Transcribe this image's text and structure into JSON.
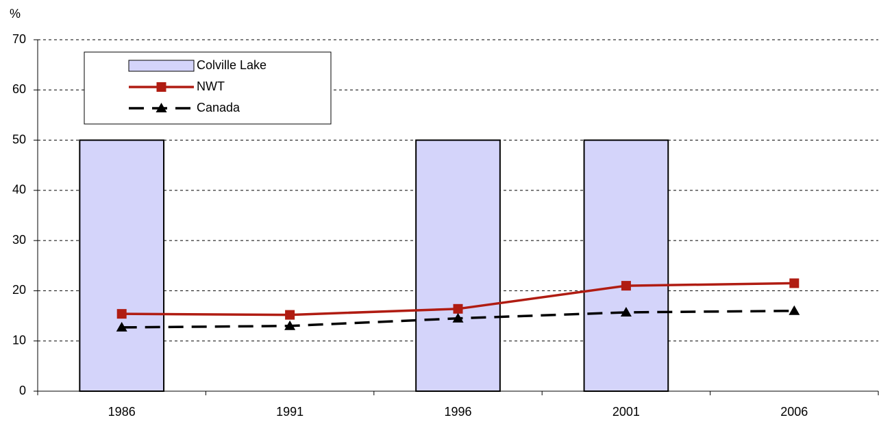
{
  "chart_data": {
    "type": "bar",
    "y_label": "%",
    "categories": [
      "1986",
      "1991",
      "1996",
      "2001",
      "2006"
    ],
    "series": [
      {
        "name": "Colville Lake",
        "type": "bar",
        "color": "#d4d4fa",
        "values": [
          50,
          null,
          50,
          50,
          null
        ]
      },
      {
        "name": "NWT",
        "type": "line",
        "color": "#b01c12",
        "marker": "square",
        "line_style": "solid",
        "values": [
          15.4,
          15.2,
          16.4,
          21.0,
          21.5
        ]
      },
      {
        "name": "Canada",
        "type": "line",
        "color": "#000000",
        "marker": "triangle",
        "line_style": "dashed",
        "values": [
          12.7,
          13.0,
          14.5,
          15.7,
          16.0
        ]
      }
    ],
    "ylim": [
      0,
      70
    ],
    "yticks": [
      0,
      10,
      20,
      30,
      40,
      50,
      60,
      70
    ],
    "grid": true,
    "legend": "top-left"
  }
}
